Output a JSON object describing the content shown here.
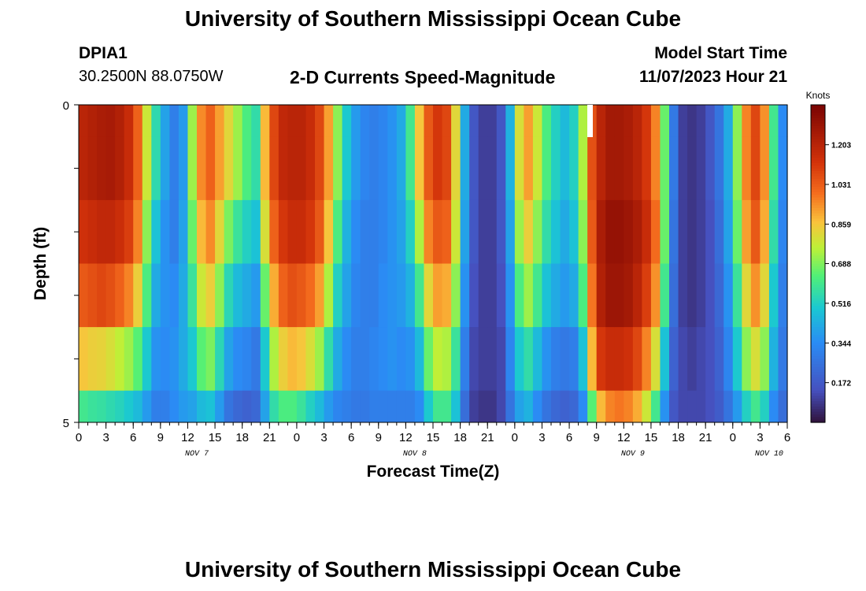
{
  "header": {
    "title": "University of Southern Mississippi Ocean Cube",
    "station_id": "DPIA1",
    "station_coords": "30.2500N  88.0750W",
    "subtitle": "2-D Currents Speed-Magnitude",
    "start_label": "Model Start Time",
    "start_time": "11/07/2023 Hour 21"
  },
  "footer": {
    "title": "University of Southern Mississippi Ocean Cube"
  },
  "chart_data": {
    "type": "heatmap",
    "title": "2-D Currents Speed-Magnitude",
    "xlabel": "Forecast Time(Z)",
    "ylabel": "Depth (ft)",
    "ylim": [
      0,
      5
    ],
    "y_ticks": [
      "0",
      "5"
    ],
    "x_tick_labels": [
      "0",
      "3",
      "6",
      "9",
      "12",
      "15",
      "18",
      "21",
      "0",
      "3",
      "6",
      "9",
      "12",
      "15",
      "18",
      "21",
      "0",
      "3",
      "6",
      "9",
      "12",
      "15",
      "18",
      "21",
      "0",
      "3",
      "6"
    ],
    "date_labels": [
      {
        "label": "NOV 7",
        "hour_index": 13
      },
      {
        "label": "NOV 8",
        "hour_index": 37
      },
      {
        "label": "NOV 9",
        "hour_index": 61
      },
      {
        "label": "NOV 10",
        "hour_index": 76
      }
    ],
    "colorbar": {
      "title": "Knots",
      "range": [
        0,
        1.376
      ],
      "tick_values": [
        0.172,
        0.344,
        0.516,
        0.688,
        0.859,
        1.031,
        1.203
      ],
      "tick_labels": [
        "0.172",
        "0.344",
        "0.516",
        "0.688",
        "0.859",
        "1.031",
        "1.203"
      ]
    },
    "hours": 78,
    "depth_rows": [
      0.5,
      1.5,
      2.5,
      3.5,
      4.5
    ],
    "speed_knots_by_hour": [
      [
        1.2,
        1.14,
        1.04,
        0.86,
        0.6
      ],
      [
        1.22,
        1.16,
        1.06,
        0.84,
        0.58
      ],
      [
        1.24,
        1.18,
        1.08,
        0.83,
        0.57
      ],
      [
        1.25,
        1.18,
        1.06,
        0.8,
        0.55
      ],
      [
        1.22,
        1.15,
        1.02,
        0.76,
        0.53
      ],
      [
        1.16,
        1.1,
        0.96,
        0.72,
        0.5
      ],
      [
        1.02,
        0.96,
        0.84,
        0.64,
        0.46
      ],
      [
        0.78,
        0.7,
        0.62,
        0.5,
        0.38
      ],
      [
        0.55,
        0.48,
        0.42,
        0.36,
        0.3
      ],
      [
        0.4,
        0.36,
        0.36,
        0.34,
        0.3
      ],
      [
        0.3,
        0.3,
        0.34,
        0.36,
        0.34
      ],
      [
        0.38,
        0.4,
        0.42,
        0.42,
        0.38
      ],
      [
        0.72,
        0.66,
        0.58,
        0.5,
        0.4
      ],
      [
        0.95,
        0.88,
        0.78,
        0.64,
        0.46
      ],
      [
        1.02,
        0.95,
        0.84,
        0.68,
        0.48
      ],
      [
        0.92,
        0.82,
        0.7,
        0.54,
        0.38
      ],
      [
        0.82,
        0.68,
        0.54,
        0.4,
        0.26
      ],
      [
        0.72,
        0.58,
        0.46,
        0.34,
        0.22
      ],
      [
        0.62,
        0.52,
        0.42,
        0.32,
        0.2
      ],
      [
        0.56,
        0.48,
        0.38,
        0.28,
        0.22
      ],
      [
        0.88,
        0.8,
        0.66,
        0.5,
        0.4
      ],
      [
        1.08,
        1.02,
        0.9,
        0.74,
        0.56
      ],
      [
        1.18,
        1.12,
        1.02,
        0.84,
        0.62
      ],
      [
        1.2,
        1.16,
        1.06,
        0.88,
        0.62
      ],
      [
        1.2,
        1.16,
        1.04,
        0.86,
        0.58
      ],
      [
        1.16,
        1.12,
        1.0,
        0.8,
        0.52
      ],
      [
        1.08,
        1.04,
        0.92,
        0.72,
        0.46
      ],
      [
        0.92,
        0.86,
        0.74,
        0.56,
        0.38
      ],
      [
        0.7,
        0.62,
        0.52,
        0.42,
        0.32
      ],
      [
        0.5,
        0.44,
        0.4,
        0.34,
        0.3
      ],
      [
        0.38,
        0.34,
        0.32,
        0.3,
        0.28
      ],
      [
        0.32,
        0.3,
        0.3,
        0.3,
        0.28
      ],
      [
        0.3,
        0.3,
        0.3,
        0.32,
        0.3
      ],
      [
        0.32,
        0.32,
        0.34,
        0.34,
        0.3
      ],
      [
        0.36,
        0.36,
        0.36,
        0.36,
        0.3
      ],
      [
        0.42,
        0.4,
        0.38,
        0.34,
        0.3
      ],
      [
        0.6,
        0.52,
        0.44,
        0.36,
        0.3
      ],
      [
        0.86,
        0.74,
        0.6,
        0.46,
        0.34
      ],
      [
        1.04,
        0.96,
        0.82,
        0.66,
        0.5
      ],
      [
        1.12,
        1.04,
        0.92,
        0.76,
        0.6
      ],
      [
        1.08,
        1.02,
        0.9,
        0.74,
        0.6
      ],
      [
        0.82,
        0.78,
        0.7,
        0.58,
        0.48
      ],
      [
        0.42,
        0.4,
        0.36,
        0.3,
        0.24
      ],
      [
        0.16,
        0.16,
        0.14,
        0.12,
        0.1
      ],
      [
        0.1,
        0.1,
        0.1,
        0.1,
        0.08
      ],
      [
        0.1,
        0.1,
        0.1,
        0.1,
        0.08
      ],
      [
        0.16,
        0.16,
        0.14,
        0.12,
        0.12
      ],
      [
        0.44,
        0.4,
        0.36,
        0.32,
        0.26
      ],
      [
        0.8,
        0.72,
        0.62,
        0.5,
        0.4
      ],
      [
        0.92,
        0.84,
        0.72,
        0.56,
        0.44
      ],
      [
        0.78,
        0.7,
        0.6,
        0.46,
        0.34
      ],
      [
        0.62,
        0.56,
        0.48,
        0.36,
        0.26
      ],
      [
        0.52,
        0.48,
        0.42,
        0.3,
        0.22
      ],
      [
        0.46,
        0.42,
        0.38,
        0.28,
        0.2
      ],
      [
        0.52,
        0.48,
        0.42,
        0.3,
        0.22
      ],
      [
        0.74,
        0.7,
        0.62,
        0.48,
        0.34
      ],
      [
        1.06,
        1.04,
        0.98,
        0.88,
        0.64
      ],
      [
        1.2,
        1.24,
        1.22,
        1.12,
        0.88
      ],
      [
        1.26,
        1.3,
        1.28,
        1.16,
        0.96
      ],
      [
        1.26,
        1.3,
        1.28,
        1.16,
        0.98
      ],
      [
        1.24,
        1.28,
        1.26,
        1.14,
        0.96
      ],
      [
        1.2,
        1.24,
        1.2,
        1.08,
        0.9
      ],
      [
        1.12,
        1.16,
        1.1,
        0.96,
        0.78
      ],
      [
        0.96,
        1.0,
        0.94,
        0.8,
        0.6
      ],
      [
        0.66,
        0.66,
        0.6,
        0.48,
        0.36
      ],
      [
        0.28,
        0.26,
        0.24,
        0.2,
        0.16
      ],
      [
        0.1,
        0.1,
        0.1,
        0.12,
        0.12
      ],
      [
        0.08,
        0.08,
        0.08,
        0.1,
        0.12
      ],
      [
        0.1,
        0.1,
        0.1,
        0.12,
        0.12
      ],
      [
        0.16,
        0.14,
        0.14,
        0.14,
        0.14
      ],
      [
        0.26,
        0.24,
        0.22,
        0.2,
        0.18
      ],
      [
        0.42,
        0.4,
        0.36,
        0.32,
        0.26
      ],
      [
        0.7,
        0.66,
        0.58,
        0.5,
        0.38
      ],
      [
        0.96,
        0.92,
        0.82,
        0.7,
        0.52
      ],
      [
        1.08,
        1.04,
        0.94,
        0.8,
        0.6
      ],
      [
        0.94,
        0.9,
        0.82,
        0.7,
        0.52
      ],
      [
        0.6,
        0.56,
        0.5,
        0.44,
        0.34
      ],
      [
        0.34,
        0.32,
        0.3,
        0.28,
        0.24
      ]
    ]
  }
}
